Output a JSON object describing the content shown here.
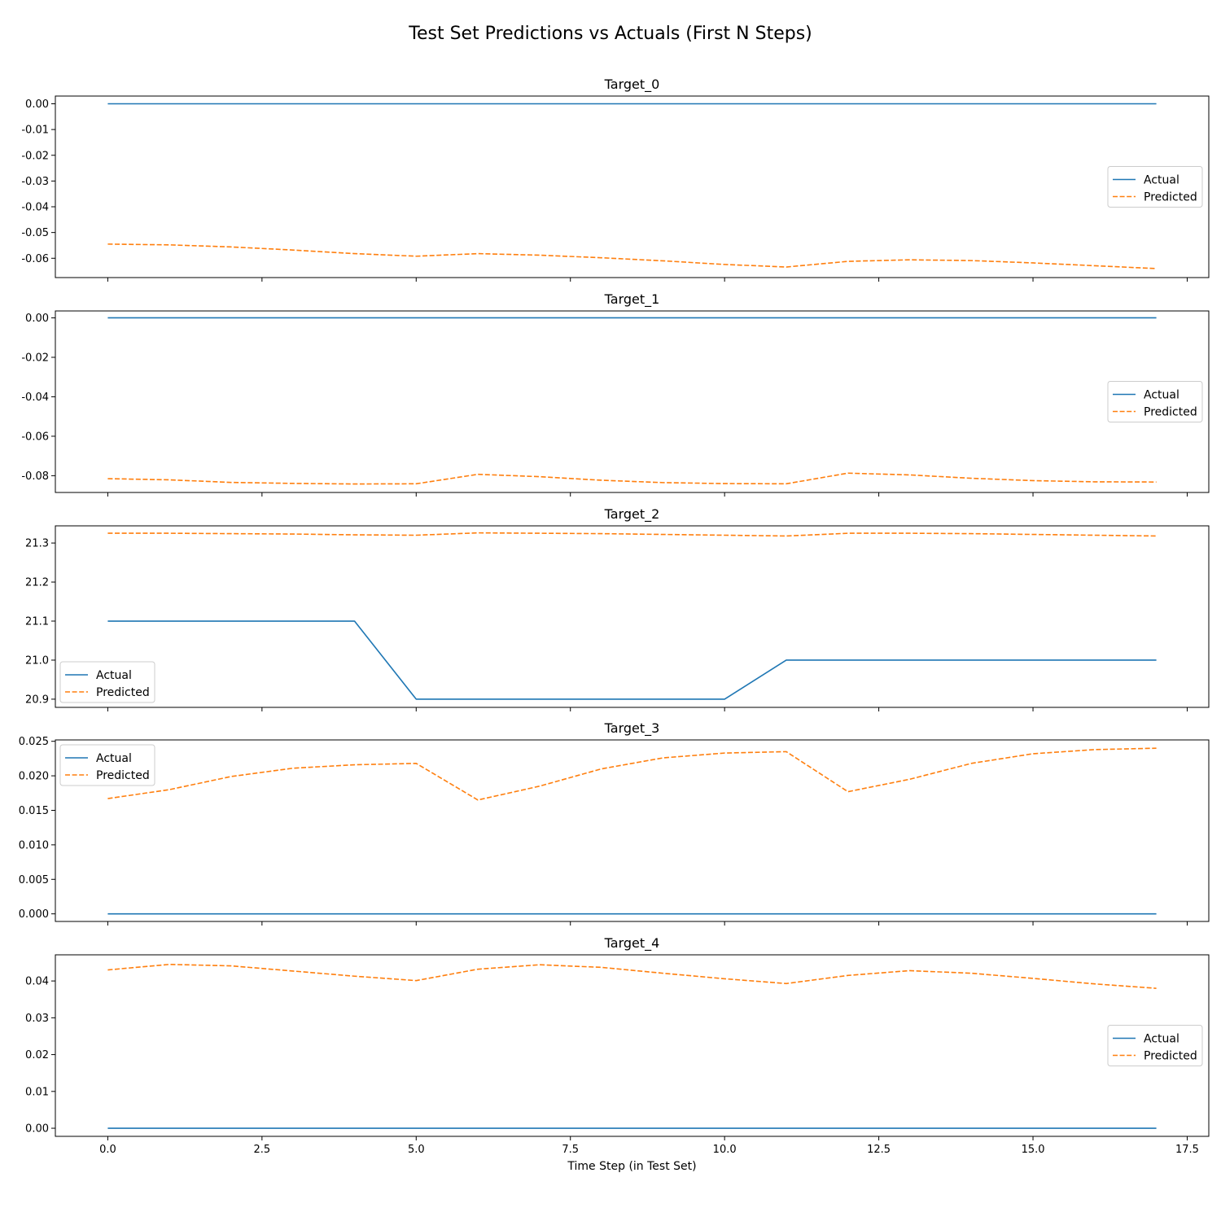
{
  "title": "Test Set Predictions vs Actuals (First N Steps)",
  "colors": {
    "actual": "#1f77b4",
    "predicted": "#ff7f0e"
  },
  "chart_data": [
    {
      "type": "line",
      "title": "Target_0",
      "x": [
        0,
        1,
        2,
        3,
        4,
        5,
        6,
        7,
        8,
        9,
        10,
        11,
        12,
        13,
        14,
        15,
        16,
        17
      ],
      "ylim": [
        -0.0675,
        0.003
      ],
      "yticks": [
        0.0,
        -0.01,
        -0.02,
        -0.03,
        -0.04,
        -0.05,
        -0.06
      ],
      "ytick_labels": [
        "0.00",
        "-0.01",
        "-0.02",
        "-0.03",
        "-0.04",
        "-0.05",
        "-0.06"
      ],
      "legend_loc": "center-right",
      "series": [
        {
          "name": "Actual",
          "style": "solid",
          "values": [
            0,
            0,
            0,
            0,
            0,
            0,
            0,
            0,
            0,
            0,
            0,
            0,
            0,
            0,
            0,
            0,
            0,
            0
          ]
        },
        {
          "name": "Predicted",
          "style": "dashed",
          "values": [
            -0.0545,
            -0.0548,
            -0.0556,
            -0.0568,
            -0.0582,
            -0.0592,
            -0.0582,
            -0.0588,
            -0.0598,
            -0.061,
            -0.0624,
            -0.0634,
            -0.0612,
            -0.0606,
            -0.0609,
            -0.0618,
            -0.0629,
            -0.064
          ]
        }
      ]
    },
    {
      "type": "line",
      "title": "Target_1",
      "x": [
        0,
        1,
        2,
        3,
        4,
        5,
        6,
        7,
        8,
        9,
        10,
        11,
        12,
        13,
        14,
        15,
        16,
        17
      ],
      "ylim": [
        -0.0885,
        0.0035
      ],
      "yticks": [
        0.0,
        -0.02,
        -0.04,
        -0.06,
        -0.08
      ],
      "ytick_labels": [
        "0.00",
        "-0.02",
        "-0.04",
        "-0.06",
        "-0.08"
      ],
      "legend_loc": "center-right",
      "series": [
        {
          "name": "Actual",
          "style": "solid",
          "values": [
            0,
            0,
            0,
            0,
            0,
            0,
            0,
            0,
            0,
            0,
            0,
            0,
            0,
            0,
            0,
            0,
            0,
            0
          ]
        },
        {
          "name": "Predicted",
          "style": "dashed",
          "values": [
            -0.0815,
            -0.0821,
            -0.0834,
            -0.0839,
            -0.0842,
            -0.0841,
            -0.0793,
            -0.0805,
            -0.0823,
            -0.0835,
            -0.084,
            -0.0841,
            -0.0787,
            -0.0796,
            -0.0813,
            -0.0825,
            -0.0831,
            -0.0832
          ]
        }
      ]
    },
    {
      "type": "line",
      "title": "Target_2",
      "x": [
        0,
        1,
        2,
        3,
        4,
        5,
        6,
        7,
        8,
        9,
        10,
        11,
        12,
        13,
        14,
        15,
        16,
        17
      ],
      "ylim": [
        20.879,
        21.344
      ],
      "yticks": [
        20.9,
        21.0,
        21.1,
        21.2,
        21.3
      ],
      "ytick_labels": [
        "20.9",
        "21.0",
        "21.1",
        "21.2",
        "21.3"
      ],
      "legend_loc": "lower-left",
      "series": [
        {
          "name": "Actual",
          "style": "solid",
          "values": [
            21.1,
            21.1,
            21.1,
            21.1,
            21.1,
            20.9,
            20.9,
            20.9,
            20.9,
            20.9,
            20.9,
            21.0,
            21.0,
            21.0,
            21.0,
            21.0,
            21.0,
            21.0
          ]
        },
        {
          "name": "Predicted",
          "style": "dashed",
          "values": [
            21.325,
            21.325,
            21.324,
            21.323,
            21.321,
            21.32,
            21.326,
            21.325,
            21.324,
            21.322,
            21.32,
            21.318,
            21.325,
            21.325,
            21.324,
            21.322,
            21.32,
            21.318
          ]
        }
      ]
    },
    {
      "type": "line",
      "title": "Target_3",
      "x": [
        0,
        1,
        2,
        3,
        4,
        5,
        6,
        7,
        8,
        9,
        10,
        11,
        12,
        13,
        14,
        15,
        16,
        17
      ],
      "ylim": [
        -0.0011,
        0.0252
      ],
      "yticks": [
        0.0,
        0.005,
        0.01,
        0.015,
        0.02,
        0.025
      ],
      "ytick_labels": [
        "0.000",
        "0.005",
        "0.010",
        "0.015",
        "0.020",
        "0.025"
      ],
      "legend_loc": "upper-left",
      "series": [
        {
          "name": "Actual",
          "style": "solid",
          "values": [
            0,
            0,
            0,
            0,
            0,
            0,
            0,
            0,
            0,
            0,
            0,
            0,
            0,
            0,
            0,
            0,
            0,
            0
          ]
        },
        {
          "name": "Predicted",
          "style": "dashed",
          "values": [
            0.0167,
            0.018,
            0.0199,
            0.0211,
            0.0216,
            0.0218,
            0.0165,
            0.0185,
            0.021,
            0.0226,
            0.0233,
            0.0235,
            0.0177,
            0.0195,
            0.0218,
            0.0232,
            0.0238,
            0.024
          ]
        }
      ]
    },
    {
      "type": "line",
      "title": "Target_4",
      "x": [
        0,
        1,
        2,
        3,
        4,
        5,
        6,
        7,
        8,
        9,
        10,
        11,
        12,
        13,
        14,
        15,
        16,
        17
      ],
      "ylim": [
        -0.0022,
        0.0471
      ],
      "yticks": [
        0.0,
        0.01,
        0.02,
        0.03,
        0.04
      ],
      "ytick_labels": [
        "0.00",
        "0.01",
        "0.02",
        "0.03",
        "0.04"
      ],
      "legend_loc": "center-right",
      "series": [
        {
          "name": "Actual",
          "style": "solid",
          "values": [
            0,
            0,
            0,
            0,
            0,
            0,
            0,
            0,
            0,
            0,
            0,
            0,
            0,
            0,
            0,
            0,
            0,
            0
          ]
        },
        {
          "name": "Predicted",
          "style": "dashed",
          "values": [
            0.043,
            0.0445,
            0.0441,
            0.0427,
            0.0413,
            0.0401,
            0.0432,
            0.0444,
            0.0437,
            0.0421,
            0.0406,
            0.0393,
            0.0415,
            0.0428,
            0.0421,
            0.0407,
            0.0392,
            0.038
          ]
        }
      ]
    }
  ],
  "shared_x": {
    "label": "Time Step (in Test Set)",
    "xlim": [
      -0.85,
      17.85
    ],
    "ticks": [
      0.0,
      2.5,
      5.0,
      7.5,
      10.0,
      12.5,
      15.0,
      17.5
    ],
    "tick_labels": [
      "0.0",
      "2.5",
      "5.0",
      "7.5",
      "10.0",
      "12.5",
      "15.0",
      "17.5"
    ]
  }
}
